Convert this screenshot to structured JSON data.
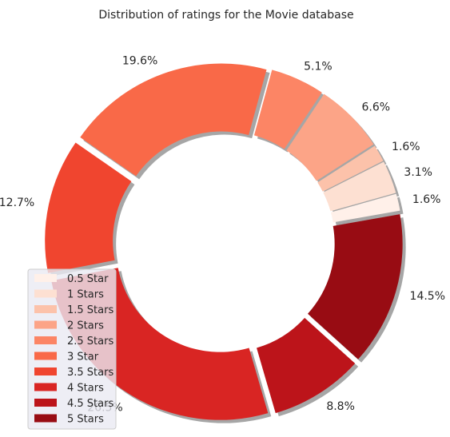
{
  "chart_data": {
    "type": "pie",
    "title": "Distribution of ratings for the Movie database",
    "donut": true,
    "exploded": true,
    "shadow": true,
    "start_angle_deg": 10,
    "direction": "counterclockwise",
    "categories": [
      "0.5 Star",
      "1 Stars",
      "1.5 Stars",
      "2 Stars",
      "2.5 Stars",
      "3 Star",
      "3.5 Stars",
      "4 Stars",
      "4.5 Stars",
      "5 Stars"
    ],
    "values": [
      1.6,
      3.1,
      1.6,
      6.6,
      5.1,
      19.6,
      12.7,
      26.5,
      8.8,
      14.5
    ],
    "labels": [
      "1.6%",
      "3.1%",
      "1.6%",
      "6.6%",
      "5.1%",
      "19.6%",
      "12.7%",
      "26.5%",
      "8.8%",
      "14.5%"
    ],
    "colors": [
      "#fff0e9",
      "#fde0d2",
      "#fcc2aa",
      "#fca487",
      "#fc8565",
      "#f96948",
      "#f0452f",
      "#d92523",
      "#bc141a",
      "#980c13"
    ],
    "legend_position": "lower-left"
  }
}
